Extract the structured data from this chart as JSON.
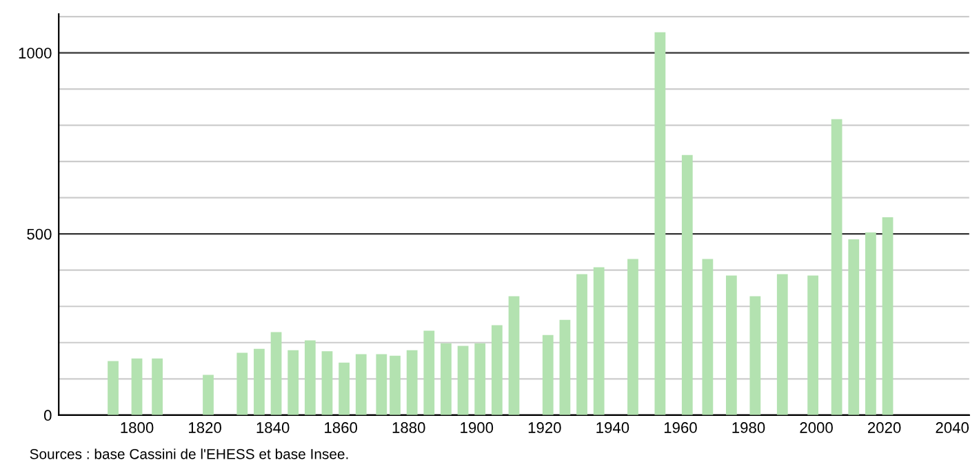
{
  "chart_data": {
    "type": "bar",
    "x": [
      1793,
      1800,
      1806,
      1821,
      1831,
      1836,
      1841,
      1846,
      1851,
      1856,
      1861,
      1866,
      1872,
      1876,
      1881,
      1886,
      1891,
      1896,
      1901,
      1906,
      1911,
      1921,
      1926,
      1931,
      1936,
      1946,
      1954,
      1962,
      1968,
      1975,
      1982,
      1990,
      1999,
      2006,
      2011,
      2016,
      2021
    ],
    "values": [
      149,
      156,
      156,
      111,
      172,
      183,
      229,
      179,
      206,
      176,
      145,
      168,
      168,
      164,
      179,
      233,
      198,
      191,
      198,
      248,
      328,
      221,
      263,
      389,
      408,
      431,
      1057,
      718,
      431,
      385,
      328,
      389,
      385,
      817,
      485,
      504,
      546
    ],
    "color": "#b3e2b0",
    "xlim": [
      1777,
      2045
    ],
    "xticks": [
      1800,
      1820,
      1840,
      1860,
      1880,
      1900,
      1920,
      1940,
      1960,
      1980,
      2000,
      2020,
      2040
    ],
    "ylim": [
      0,
      1107
    ],
    "yticks": [
      0,
      {
        "value": 100,
        "label": null
      },
      {
        "value": 200,
        "label": null
      },
      {
        "value": 300,
        "label": null
      },
      {
        "value": 400,
        "label": null
      },
      500,
      {
        "value": 600,
        "label": null
      },
      {
        "value": 700,
        "label": null
      },
      {
        "value": 800,
        "label": null
      },
      {
        "value": 900,
        "label": null
      },
      1000,
      {
        "value": 1100,
        "label": null
      }
    ],
    "grid": "y",
    "annotations": [
      "Sources : base Cassini de l'EHESS et base Insee."
    ]
  }
}
